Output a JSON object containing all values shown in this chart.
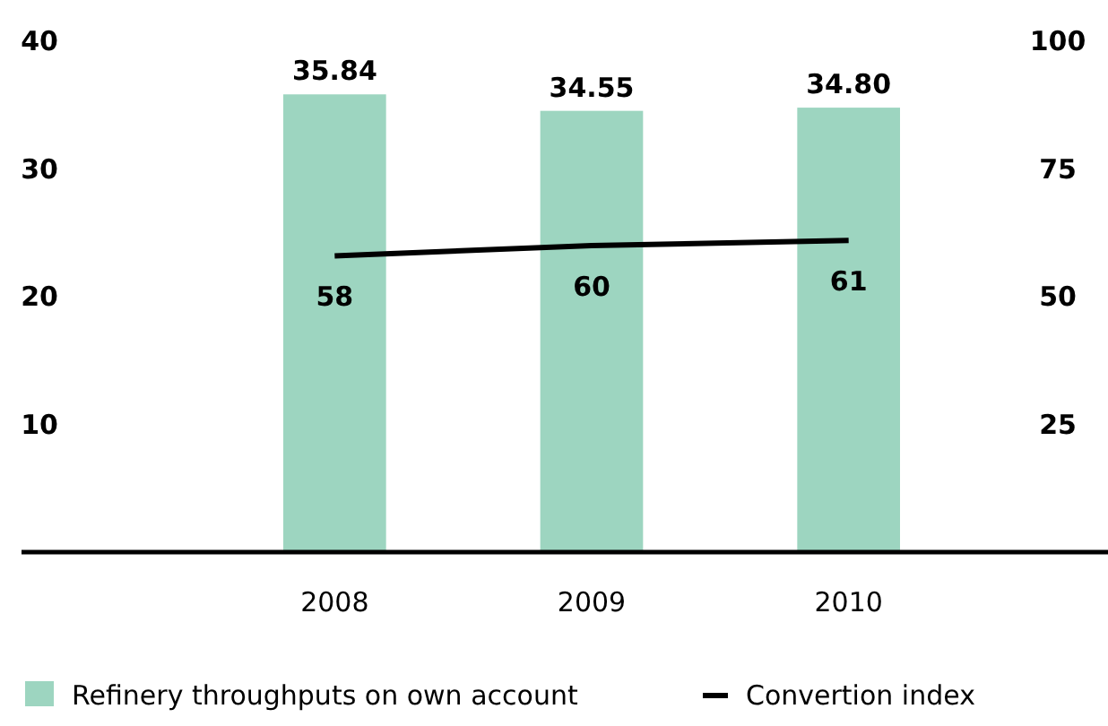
{
  "chart_data": {
    "type": "bar",
    "categories": [
      "2008",
      "2009",
      "2010"
    ],
    "series": [
      {
        "name": "Refinery throughputs on own account",
        "color": "#9dd5c0",
        "values": [
          35.84,
          34.55,
          34.8
        ],
        "value_labels": [
          "35.84",
          "34.55",
          "34.80"
        ]
      },
      {
        "name": "Convertion index",
        "type": "line",
        "axis": "y2",
        "color": "#000000",
        "values": [
          58,
          60,
          61
        ]
      }
    ],
    "ylim": [
      0,
      40
    ],
    "yticks": [
      10,
      20,
      30,
      40
    ],
    "y2lim": [
      0,
      100
    ],
    "y2ticks": [
      25,
      50,
      75,
      100
    ],
    "data_labels": true,
    "legend": "bottom",
    "grid": false
  }
}
